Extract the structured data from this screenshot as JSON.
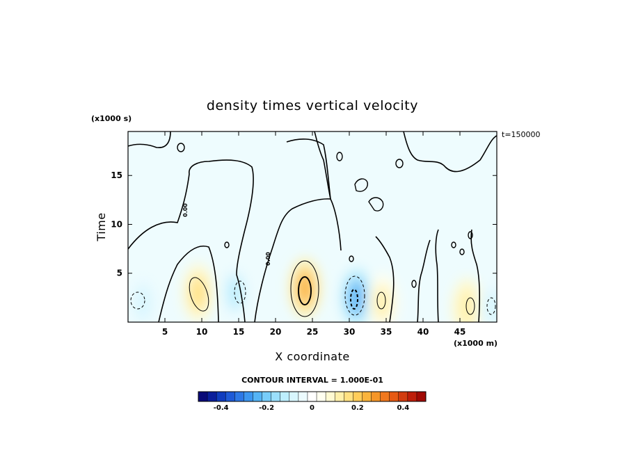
{
  "chart_data": {
    "type": "heatmap",
    "title": "density times vertical velocity",
    "xlabel": "X coordinate",
    "ylabel": "Time",
    "x_unit_label": "(x1000 m)",
    "y_unit_label": "(x1000 s)",
    "time_label": "t=150000",
    "xlim": [
      0,
      50
    ],
    "ylim": [
      0,
      19.5
    ],
    "x_ticks": [
      5,
      10,
      15,
      20,
      25,
      30,
      35,
      40,
      45
    ],
    "y_ticks": [
      5,
      10,
      15
    ],
    "contour_label": "0.00",
    "contour_interval": "CONTOUR INTERVAL = 1.000E-01",
    "colorbar": {
      "range": [
        -0.5,
        0.5
      ],
      "ticks": [
        -0.4,
        -0.2,
        0,
        0.2,
        0.4
      ],
      "tick_labels": [
        "-0.4",
        "-0.2",
        "0",
        "0.2",
        "0.4"
      ]
    },
    "features": [
      {
        "x": 9.5,
        "y": 3.0,
        "value": 0.15
      },
      {
        "x": 14.5,
        "y": 3.0,
        "value": -0.12
      },
      {
        "x": 24.0,
        "y": 3.5,
        "value": 0.25
      },
      {
        "x": 31.0,
        "y": 2.5,
        "value": -0.25
      },
      {
        "x": 34.5,
        "y": 2.0,
        "value": 0.1
      },
      {
        "x": 46.0,
        "y": 1.5,
        "value": 0.12
      },
      {
        "x": 2.0,
        "y": 2.0,
        "value": -0.1
      },
      {
        "x": 49.5,
        "y": 1.5,
        "value": -0.1
      }
    ],
    "grid": false
  },
  "colors": {
    "colorbar": [
      "#0a0a78",
      "#0a1e9b",
      "#0f3cbe",
      "#1e5ad7",
      "#2d78e6",
      "#3c96f0",
      "#55b4f5",
      "#78cdfa",
      "#9bdffc",
      "#bdeefd",
      "#d8f6fe",
      "#ecfbff",
      "#ffffff",
      "#fffff0",
      "#fffad2",
      "#fff0aa",
      "#ffe182",
      "#ffcd5a",
      "#fab43c",
      "#f59628",
      "#f0781e",
      "#e65a14",
      "#d23c0f",
      "#be1e0a",
      "#a00a05"
    ],
    "stroke": "#000000",
    "background": "#ffffff"
  }
}
